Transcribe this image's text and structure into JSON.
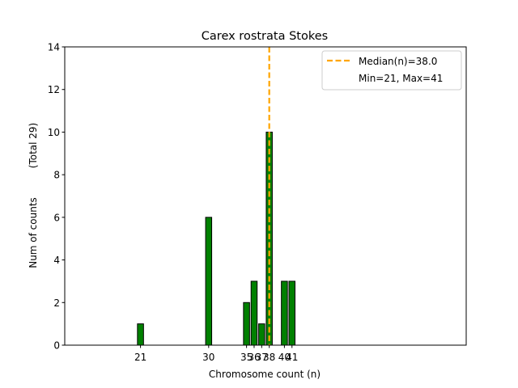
{
  "chart_data": {
    "type": "bar",
    "title": "Carex rostrata Stokes",
    "xlabel": "Chromosome count (n)",
    "ylabel": "Num of counts",
    "ylabel_total": "(Total 29)",
    "xlim": [
      11,
      64
    ],
    "ylim": [
      0,
      14
    ],
    "yticks": [
      0,
      2,
      4,
      6,
      8,
      10,
      12,
      14
    ],
    "xticks": [
      21,
      30,
      35,
      36,
      37,
      38,
      40,
      41
    ],
    "xtick_labels": [
      "21",
      "30",
      "35",
      "36",
      "37",
      "38",
      "40",
      "41"
    ],
    "x": [
      21,
      30,
      35,
      36,
      37,
      38,
      39,
      40,
      41
    ],
    "values": [
      1,
      6,
      2,
      3,
      1,
      10,
      0,
      3,
      3
    ],
    "bar_color": "#008000",
    "bar_edge_color": "#000000",
    "median": 38.0,
    "median_color": "#FFA500",
    "legend": {
      "position": "top-right",
      "entries": [
        "Median(n)=38.0",
        "Min=21, Max=41"
      ]
    }
  }
}
